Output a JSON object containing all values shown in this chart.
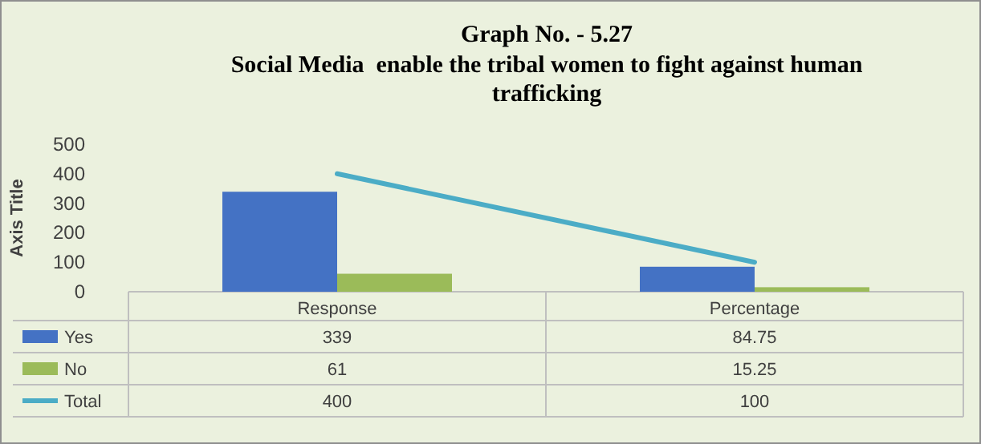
{
  "chart_data": {
    "type": "bar",
    "title": "Graph No. - 5.27",
    "subtitle": "Social Media  enable the tribal women to fight against human trafficking",
    "ylabel": "Axis Title",
    "categories": [
      "Response",
      "Percentage"
    ],
    "series": [
      {
        "name": "Yes",
        "color": "#4472c4",
        "values": [
          339,
          84.75
        ]
      },
      {
        "name": "No",
        "color": "#9bbb59",
        "values": [
          61,
          15.25
        ]
      },
      {
        "name": "Total",
        "type": "line",
        "color": "#4bacc6",
        "values": [
          400,
          100
        ]
      }
    ],
    "ylim": [
      0,
      500
    ],
    "yticks": [
      0,
      100,
      200,
      300,
      400,
      500
    ],
    "grid": false,
    "legend": "bottom left",
    "data_labels": true
  }
}
